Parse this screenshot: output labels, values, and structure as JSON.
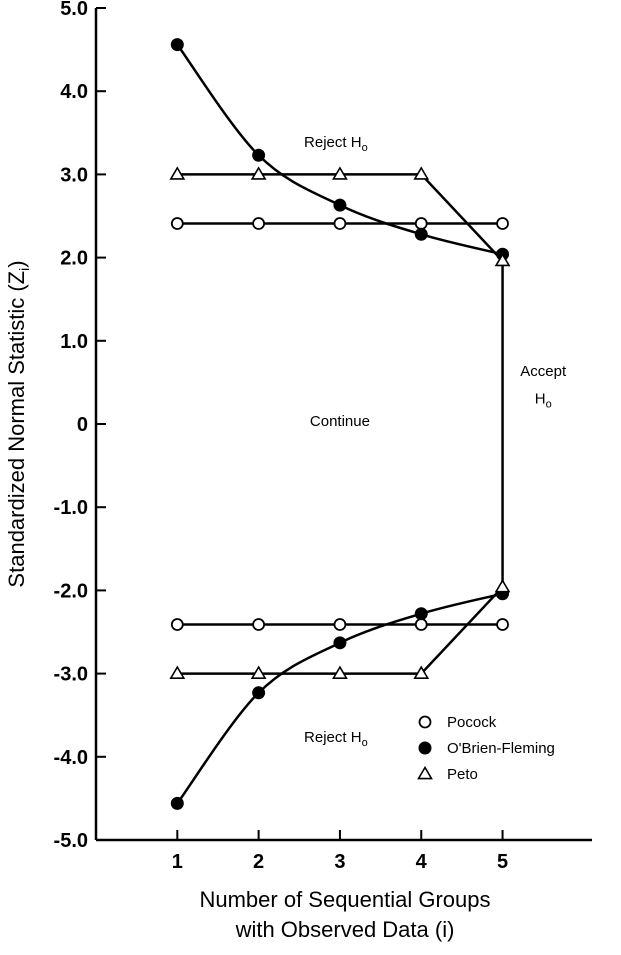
{
  "chart_data": {
    "type": "line",
    "title": "",
    "xlabel_lines": [
      "Number of Sequential Groups",
      "with Observed Data (i)"
    ],
    "ylabel": "Standardized Normal Statistic (Z",
    "ylabel_subscript": "i",
    "ylabel_suffix": ")",
    "xlim": [
      0,
      6.1
    ],
    "ylim": [
      -5.0,
      5.0
    ],
    "x_ticks": [
      1,
      2,
      3,
      4,
      5
    ],
    "x_tick_labels": [
      "1",
      "2",
      "3",
      "4",
      "5"
    ],
    "y_ticks": [
      5.0,
      4.0,
      3.0,
      2.0,
      1.0,
      0,
      -1.0,
      -2.0,
      -3.0,
      -4.0,
      -5.0
    ],
    "y_tick_labels": [
      "5.0",
      "4.0",
      "3.0",
      "2.0",
      "1.0",
      "0",
      "-1.0",
      "-2.0",
      "-3.0",
      "-4.0",
      "-5.0"
    ],
    "grid": false,
    "legend_position": "bottom-right",
    "series": [
      {
        "name": "Pocock",
        "marker": "open-circle",
        "x": [
          1,
          2,
          3,
          4,
          5
        ],
        "upper": [
          2.41,
          2.41,
          2.41,
          2.41,
          2.41
        ],
        "lower": [
          -2.41,
          -2.41,
          -2.41,
          -2.41,
          -2.41
        ]
      },
      {
        "name": "O'Brien-Fleming",
        "marker": "filled-circle",
        "x": [
          1,
          2,
          3,
          4,
          5
        ],
        "upper": [
          4.56,
          3.23,
          2.63,
          2.28,
          2.04
        ],
        "lower": [
          -4.56,
          -3.23,
          -2.63,
          -2.28,
          -2.04
        ]
      },
      {
        "name": "Peto",
        "marker": "open-triangle",
        "x": [
          1,
          2,
          3,
          4,
          5
        ],
        "upper": [
          3.0,
          3.0,
          3.0,
          3.0,
          1.96
        ],
        "lower": [
          -3.0,
          -3.0,
          -3.0,
          -3.0,
          -1.96
        ]
      }
    ],
    "annotations": {
      "reject_upper": {
        "text": "Reject H",
        "sub": "o",
        "x": 2.95,
        "y": 3.4
      },
      "continue": {
        "text": "Continue",
        "x": 3.0,
        "y": 0.05
      },
      "accept_line1": {
        "text": "Accept",
        "x": 5.5,
        "y": 0.65
      },
      "accept_line2": {
        "text": "H",
        "sub": "o",
        "x": 5.5,
        "y": 0.32
      },
      "reject_lower": {
        "text": "Reject H",
        "sub": "o",
        "x": 2.95,
        "y": -3.75
      }
    }
  }
}
